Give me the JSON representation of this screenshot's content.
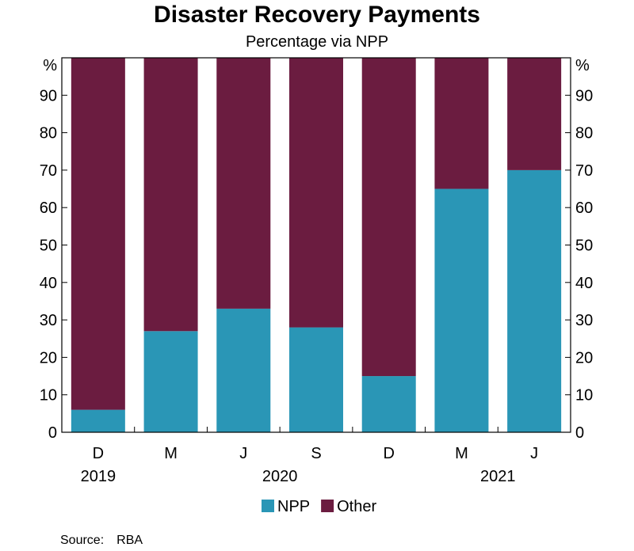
{
  "chart_data": {
    "type": "bar",
    "stacked": true,
    "title": "Disaster Recovery Payments",
    "subtitle": "Percentage via NPP",
    "unit_label": "%",
    "categories": [
      "D",
      "M",
      "J",
      "S",
      "D",
      "M",
      "J"
    ],
    "year_labels": [
      {
        "label": "2019",
        "category_index": 0
      },
      {
        "label": "2020",
        "category_index": 2.5
      },
      {
        "label": "2021",
        "category_index": 5.5
      }
    ],
    "series": [
      {
        "name": "NPP",
        "color": "#2a96b6",
        "values": [
          6,
          27,
          33,
          28,
          15,
          65,
          70
        ]
      },
      {
        "name": "Other",
        "color": "#6b1c40",
        "values": [
          94,
          73,
          67,
          72,
          85,
          35,
          30
        ]
      }
    ],
    "ylim": [
      0,
      100
    ],
    "yticks": [
      0,
      10,
      20,
      30,
      40,
      50,
      60,
      70,
      80,
      90
    ],
    "legend_position": "bottom-center",
    "grid": false
  },
  "source": {
    "label": "Source:",
    "value": "RBA"
  }
}
